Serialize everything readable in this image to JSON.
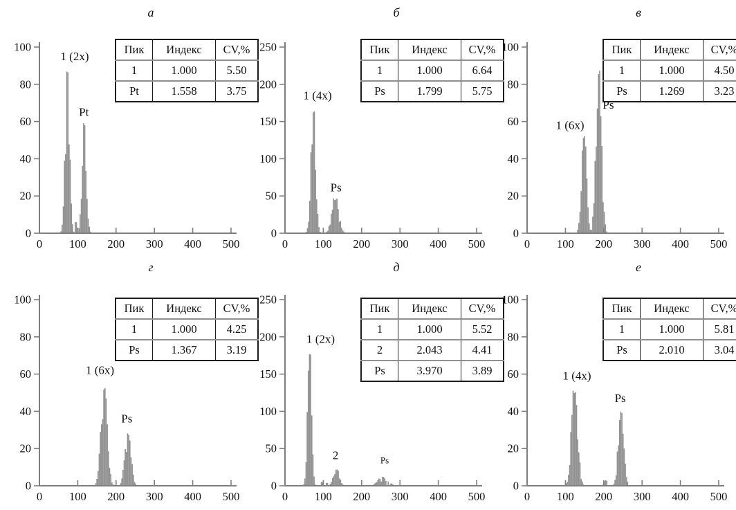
{
  "figure": {
    "background": "#ffffff",
    "bar_color": "#929292",
    "axis_color": "#7e7e7e",
    "text_color": "#111111",
    "table_border_color": "#1c1c1c",
    "table_separator_color": "#8f8f8f",
    "table_headers": [
      "Пик",
      "Индекс",
      "CV,%"
    ]
  },
  "chart_data": [
    {
      "type": "bar",
      "title": "а",
      "xlabel": "",
      "ylabel": "",
      "xlim": [
        0,
        515
      ],
      "ylim": [
        0,
        100
      ],
      "xticks": [
        0,
        100,
        200,
        300,
        400,
        500
      ],
      "yticks": [
        0,
        20,
        40,
        60,
        80,
        100
      ],
      "grid": false,
      "peaks": [
        {
          "label": "1 (2x)",
          "center": 73,
          "height": 88,
          "sigma": 5.5,
          "label_x": 92,
          "label_y": 93
        },
        {
          "label": "",
          "center": 94,
          "height": 6,
          "sigma": 1.5
        },
        {
          "label": "Pt",
          "center": 117,
          "height": 59,
          "sigma": 5.5,
          "label_x": 116,
          "label_y": 63
        }
      ],
      "table_rows": [
        [
          "1",
          "1.000",
          "5.50"
        ],
        [
          "Pt",
          "1.558",
          "3.75"
        ]
      ]
    },
    {
      "type": "bar",
      "title": "б",
      "xlabel": "",
      "ylabel": "",
      "xlim": [
        0,
        515
      ],
      "ylim": [
        0,
        250
      ],
      "xticks": [
        0,
        100,
        200,
        300,
        400,
        500
      ],
      "yticks": [
        0,
        50,
        100,
        150,
        200,
        250
      ],
      "grid": false,
      "peaks": [
        {
          "label": "1 (4x)",
          "center": 74,
          "height": 165,
          "sigma": 6,
          "label_x": 85,
          "label_y": 180
        },
        {
          "label": "Ps",
          "center": 131,
          "height": 45,
          "sigma": 9,
          "label_x": 133,
          "label_y": 56
        }
      ],
      "table_rows": [
        [
          "1",
          "1.000",
          "6.64"
        ],
        [
          "Ps",
          "1.799",
          "5.75"
        ]
      ]
    },
    {
      "type": "bar",
      "title": "в",
      "xlabel": "",
      "ylabel": "",
      "xlim": [
        0,
        515
      ],
      "ylim": [
        0,
        100
      ],
      "xticks": [
        0,
        100,
        200,
        300,
        400,
        500
      ],
      "yticks": [
        0,
        20,
        40,
        60,
        80,
        100
      ],
      "grid": false,
      "peaks": [
        {
          "label": "1 (6x)",
          "center": 149,
          "height": 52,
          "sigma": 6.5,
          "label_x": 112,
          "label_y": 56
        },
        {
          "label": "Ps",
          "center": 187,
          "height": 87,
          "sigma": 7,
          "label_x": 212,
          "label_y": 67
        }
      ],
      "table_rows": [
        [
          "1",
          "1.000",
          "4.50"
        ],
        [
          "Ps",
          "1.269",
          "3.23"
        ]
      ]
    },
    {
      "type": "bar",
      "title": "г",
      "xlabel": "",
      "ylabel": "",
      "xlim": [
        0,
        515
      ],
      "ylim": [
        0,
        100
      ],
      "xticks": [
        0,
        100,
        200,
        300,
        400,
        500
      ],
      "yticks": [
        0,
        20,
        40,
        60,
        80,
        100
      ],
      "grid": false,
      "peaks": [
        {
          "label": "1 (6x)",
          "center": 169,
          "height": 53,
          "sigma": 8,
          "label_x": 158,
          "label_y": 60
        },
        {
          "label": "Ps",
          "center": 231,
          "height": 28,
          "sigma": 8,
          "label_x": 228,
          "label_y": 34
        }
      ],
      "table_rows": [
        [
          "1",
          "1.000",
          "4.25"
        ],
        [
          "Ps",
          "1.367",
          "3.19"
        ]
      ]
    },
    {
      "type": "bar",
      "title": "д",
      "xlabel": "",
      "ylabel": "",
      "xlim": [
        0,
        515
      ],
      "ylim": [
        0,
        250
      ],
      "xticks": [
        0,
        100,
        200,
        300,
        400,
        500
      ],
      "yticks": [
        0,
        50,
        100,
        150,
        200,
        250
      ],
      "grid": false,
      "peaks": [
        {
          "label": "1 (2x)",
          "center": 64,
          "height": 182,
          "sigma": 5,
          "label_x": 93,
          "label_y": 192
        },
        {
          "label": "",
          "center": 97,
          "height": 5,
          "sigma": 2
        },
        {
          "label": "",
          "center": 110,
          "height": 4,
          "sigma": 2
        },
        {
          "label": "2",
          "center": 134,
          "height": 22,
          "sigma": 8,
          "label_x": 132,
          "label_y": 36
        },
        {
          "label": "Ps",
          "center": 257,
          "height": 12,
          "sigma": 14,
          "rough": true,
          "small": true,
          "label_x": 260,
          "label_y": 30
        }
      ],
      "table_rows": [
        [
          "1",
          "1.000",
          "5.52"
        ],
        [
          "2",
          "2.043",
          "4.41"
        ],
        [
          "Ps",
          "3.970",
          "3.89"
        ]
      ]
    },
    {
      "type": "bar",
      "title": "е",
      "xlabel": "",
      "ylabel": "",
      "xlim": [
        0,
        515
      ],
      "ylim": [
        0,
        100
      ],
      "xticks": [
        0,
        100,
        200,
        300,
        400,
        500
      ],
      "yticks": [
        0,
        20,
        40,
        60,
        80,
        100
      ],
      "grid": false,
      "peaks": [
        {
          "label": "1 (4x)",
          "center": 124,
          "height": 51,
          "sigma": 8,
          "label_x": 130,
          "label_y": 57
        },
        {
          "label": "",
          "center": 205,
          "height": 3,
          "sigma": 5,
          "rough": true
        },
        {
          "label": "Ps",
          "center": 245,
          "height": 40,
          "sigma": 7,
          "label_x": 243,
          "label_y": 45
        }
      ],
      "table_rows": [
        [
          "1",
          "1.000",
          "5.81"
        ],
        [
          "Ps",
          "2.010",
          "3.04"
        ]
      ]
    }
  ]
}
